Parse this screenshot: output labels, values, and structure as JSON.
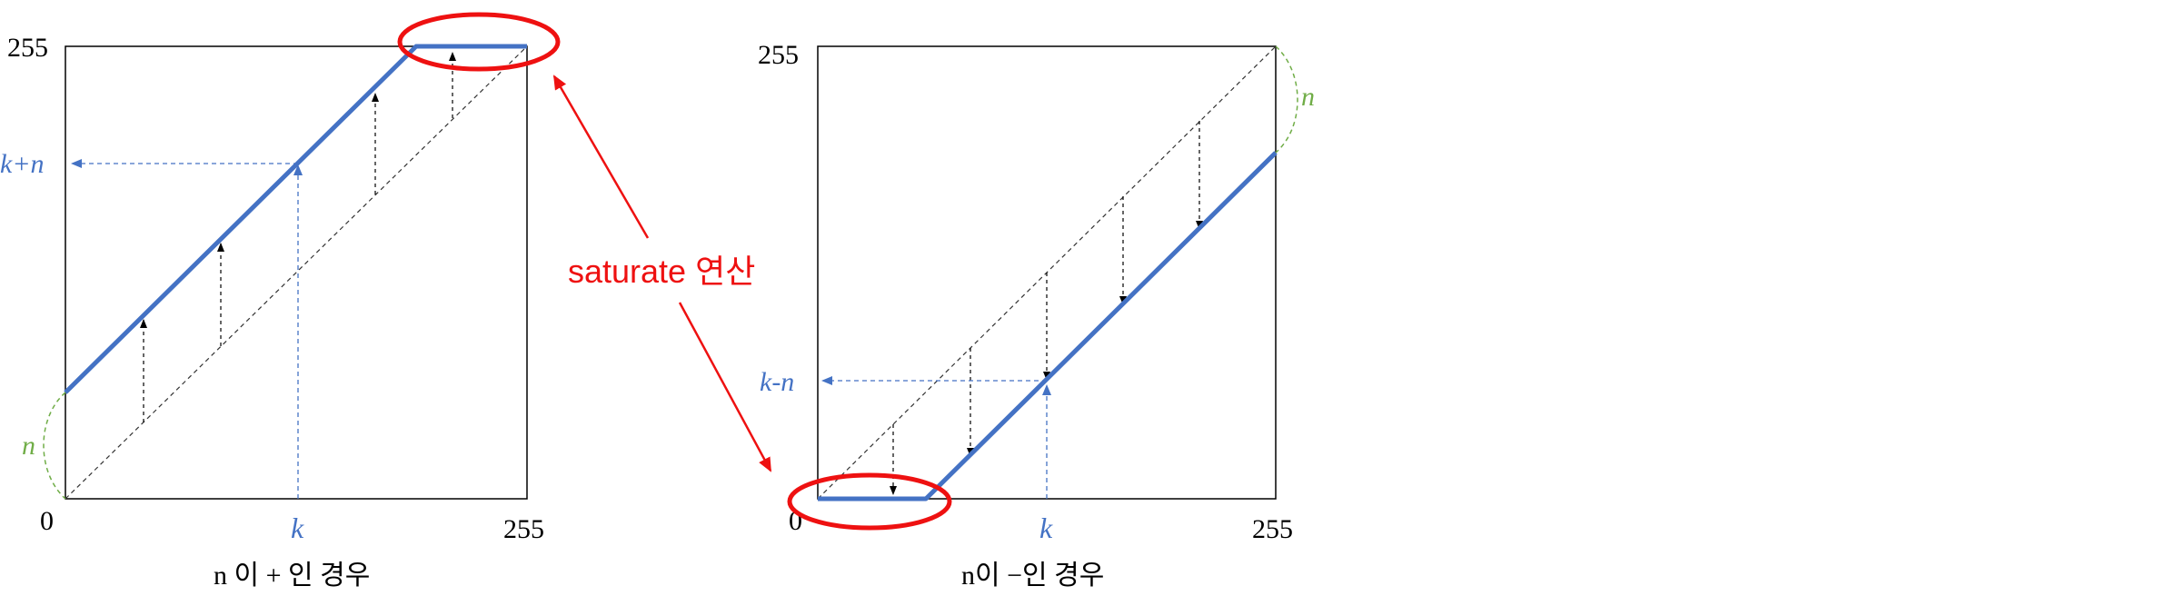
{
  "colors": {
    "blue_line": "#4472c4",
    "blue_text": "#4472c4",
    "black": "#000000",
    "red": "#ee1111",
    "green": "#70ad47",
    "grid_dash": "#333333"
  },
  "left_panel": {
    "tick_top": "255",
    "tick_origin": "0",
    "tick_right": "255",
    "k_label": "k",
    "k_plus_n_label": "k+n",
    "n_label": "n",
    "caption": "n 이 + 인 경우"
  },
  "right_panel": {
    "tick_top": "255",
    "tick_origin": "0",
    "tick_right": "255",
    "k_label": "k",
    "k_minus_n_label": "k-n",
    "n_label": "n",
    "caption": "n이 −인 경우"
  },
  "annotation": {
    "label": "saturate 연산"
  }
}
